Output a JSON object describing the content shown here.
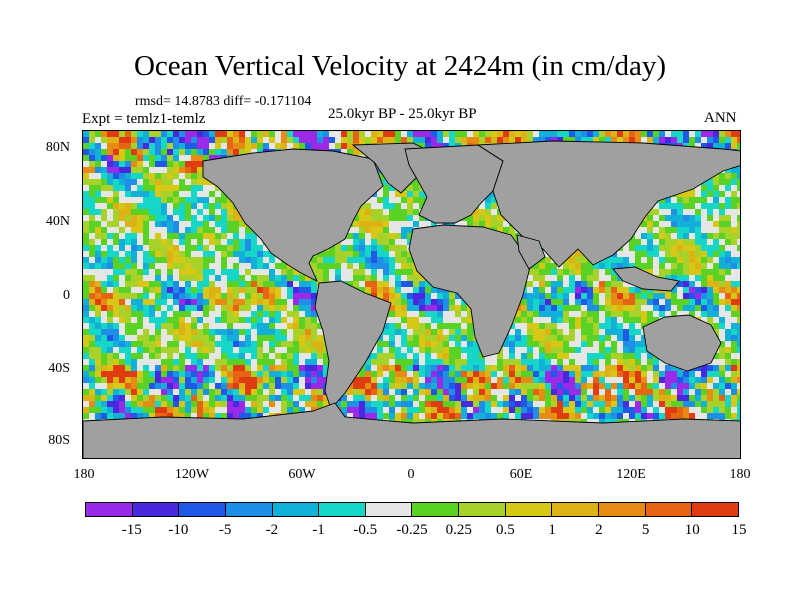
{
  "title": "Ocean Vertical Velocity at 2424m (in cm/day)",
  "stats": "rmsd= 14.8783 diff= -0.171104",
  "experiment": "Expt = temlz1-temlz",
  "period": "25.0kyr BP - 25.0kyr BP",
  "season": "ANN",
  "lat_labels": [
    "80N",
    "40N",
    "0",
    "40S",
    "80S"
  ],
  "lon_labels": [
    "180",
    "120W",
    "60W",
    "0",
    "60E",
    "120E",
    "180"
  ],
  "colorbar": {
    "labels": [
      "-15",
      "-10",
      "-5",
      "-2",
      "-1",
      "-0.5",
      "-0.25",
      "0.25",
      "0.5",
      "1",
      "2",
      "5",
      "10",
      "15"
    ],
    "colors": [
      "#9a2ae8",
      "#4a28e0",
      "#1e5ae6",
      "#1e8ee6",
      "#12b0d8",
      "#16d6c8",
      "#e6e6e6",
      "#5ad224",
      "#a6d22a",
      "#d6c814",
      "#dcb214",
      "#e68c14",
      "#e66414",
      "#e03c12"
    ]
  },
  "land_color": "#a0a0a0"
}
